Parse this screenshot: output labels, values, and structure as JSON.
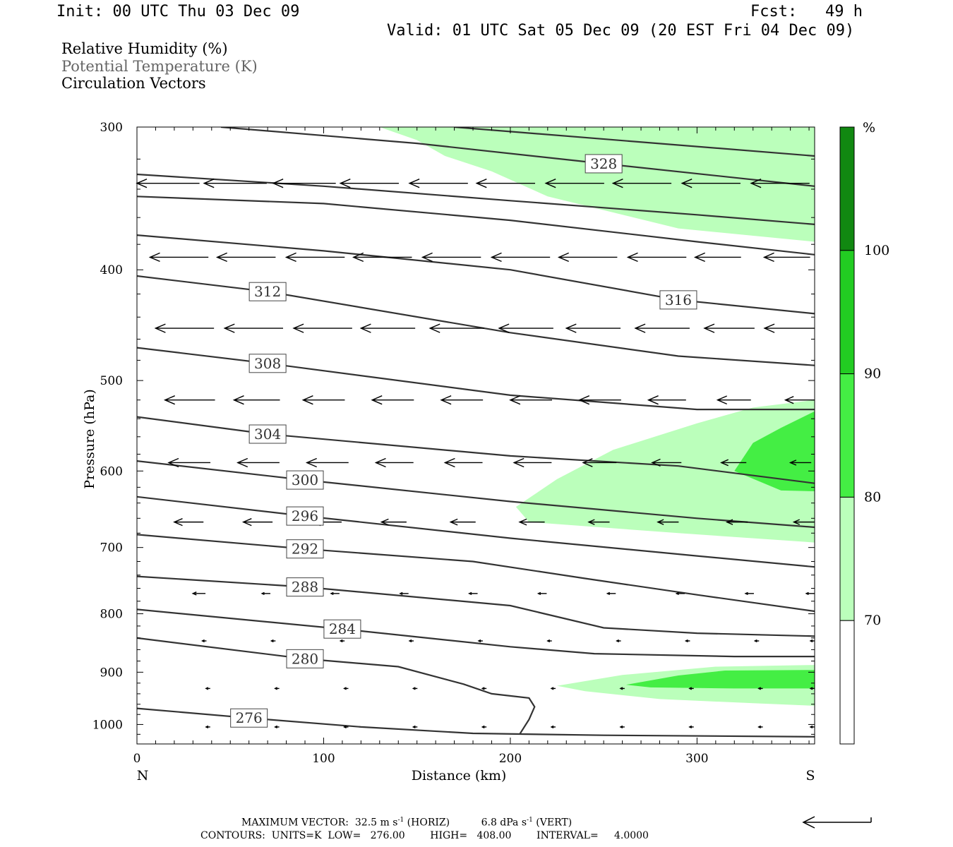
{
  "header": {
    "init": "Init: 00 UTC Thu 03 Dec 09",
    "fcst": "Fcst:   49 h",
    "valid": "Valid: 01 UTC Sat 05 Dec 09 (20 EST Fri 04 Dec 09)"
  },
  "legend": {
    "rh": "Relative Humidity (%)",
    "theta": "Potential Temperature (K)",
    "vectors": "Circulation Vectors"
  },
  "footer": {
    "max_vector_label": "MAXIMUM VECTOR:",
    "max_horiz": "32.5 m s",
    "max_horiz_exp": "-1",
    "max_horiz_unit": " (HORIZ)",
    "max_vert": "6.8 dPa s",
    "max_vert_exp": "-1",
    "max_vert_unit": " (VERT)",
    "contours": "CONTOURS:  UNITS=K  LOW=   276.00        HIGH=   408.00        INTERVAL=     4.0000"
  },
  "colorbar": {
    "unit": "%",
    "levels": [
      70,
      80,
      90,
      100
    ],
    "colors": [
      "#ffffff",
      "#bbffbb",
      "#44ee44",
      "#22cc22",
      "#118811"
    ]
  },
  "chart_data": {
    "type": "cross-section",
    "xlabel": "Distance (km)",
    "ylabel": "Pressure (hPa)",
    "xlim": [
      0,
      363
    ],
    "ylim": [
      1040,
      300
    ],
    "y_scale": "log-pressure (inverted)",
    "x_ticks": [
      0,
      100,
      200,
      300
    ],
    "y_ticks": [
      300,
      400,
      500,
      600,
      700,
      800,
      900,
      1000
    ],
    "x_end_labels": {
      "left": "N",
      "right": "S"
    },
    "theta_contour_color": "#333333",
    "rh_fill": [
      {
        "level": ">70",
        "color": "#bbffbb",
        "region": "upper right",
        "points": [
          [
            130,
            300
          ],
          [
            363,
            300
          ],
          [
            363,
            378
          ],
          [
            290,
            368
          ],
          [
            220,
            345
          ],
          [
            190,
            328
          ],
          [
            165,
            318
          ],
          [
            150,
            308
          ]
        ]
      },
      {
        "level": ">70",
        "color": "#bbffbb",
        "region": "mid right",
        "points": [
          [
            363,
            520
          ],
          [
            363,
            693
          ],
          [
            290,
            680
          ],
          [
            210,
            665
          ],
          [
            203,
            645
          ],
          [
            225,
            610
          ],
          [
            255,
            575
          ],
          [
            300,
            545
          ],
          [
            330,
            528
          ]
        ]
      },
      {
        "level": ">80",
        "color": "#44ee44",
        "region": "mid right",
        "points": [
          [
            363,
            532
          ],
          [
            363,
            625
          ],
          [
            345,
            624
          ],
          [
            320,
            600
          ],
          [
            330,
            567
          ],
          [
            345,
            550
          ]
        ]
      },
      {
        "level": ">70",
        "color": "#bbffbb",
        "region": "lower right",
        "points": [
          [
            363,
            887
          ],
          [
            363,
            963
          ],
          [
            330,
            958
          ],
          [
            280,
            950
          ],
          [
            240,
            935
          ],
          [
            225,
            925
          ],
          [
            260,
            905
          ],
          [
            310,
            890
          ]
        ]
      },
      {
        "level": ">80",
        "color": "#44ee44",
        "region": "lower right",
        "points": [
          [
            363,
            896
          ],
          [
            363,
            930
          ],
          [
            320,
            930
          ],
          [
            275,
            928
          ],
          [
            262,
            923
          ],
          [
            290,
            906
          ],
          [
            315,
            897
          ]
        ]
      }
    ],
    "theta_contours": [
      {
        "value": 276,
        "label_at": [
          60,
          987
        ],
        "points": [
          [
            0,
            968
          ],
          [
            60,
            987
          ],
          [
            120,
            1005
          ],
          [
            180,
            1018
          ],
          [
            250,
            1022
          ],
          [
            363,
            1025
          ]
        ]
      },
      {
        "value": 280,
        "label_at": [
          90,
          876
        ],
        "points": [
          [
            0,
            840
          ],
          [
            90,
            876
          ],
          [
            140,
            890
          ],
          [
            175,
            922
          ],
          [
            190,
            940
          ],
          [
            210,
            948
          ],
          [
            213,
            965
          ],
          [
            210,
            990
          ],
          [
            205,
            1020
          ]
        ]
      },
      {
        "value": 284,
        "label_at": [
          110,
          825
        ],
        "points": [
          [
            0,
            793
          ],
          [
            110,
            825
          ],
          [
            200,
            855
          ],
          [
            245,
            867
          ],
          [
            320,
            872
          ],
          [
            363,
            872
          ]
        ]
      },
      {
        "value": 288,
        "label_at": [
          90,
          758
        ],
        "points": [
          [
            0,
            742
          ],
          [
            90,
            758
          ],
          [
            200,
            787
          ],
          [
            250,
            823
          ],
          [
            300,
            832
          ],
          [
            363,
            837
          ]
        ]
      },
      {
        "value": 292,
        "label_at": [
          90,
          702
        ],
        "points": [
          [
            0,
            682
          ],
          [
            90,
            702
          ],
          [
            180,
            720
          ],
          [
            240,
            745
          ],
          [
            300,
            770
          ],
          [
            363,
            796
          ]
        ]
      },
      {
        "value": 296,
        "label_at": [
          90,
          657
        ],
        "points": [
          [
            0,
            632
          ],
          [
            90,
            657
          ],
          [
            200,
            687
          ],
          [
            300,
            712
          ],
          [
            363,
            728
          ]
        ]
      },
      {
        "value": 300,
        "label_at": [
          90,
          611
        ],
        "points": [
          [
            0,
            588
          ],
          [
            90,
            611
          ],
          [
            200,
            638
          ],
          [
            300,
            660
          ],
          [
            363,
            672
          ]
        ]
      },
      {
        "value": 304,
        "label_at": [
          70,
          557
        ],
        "points": [
          [
            0,
            538
          ],
          [
            70,
            557
          ],
          [
            200,
            582
          ],
          [
            290,
            594
          ],
          [
            363,
            615
          ]
        ]
      },
      {
        "value": 308,
        "label_at": [
          70,
          483
        ],
        "points": [
          [
            0,
            468
          ],
          [
            70,
            483
          ],
          [
            200,
            515
          ],
          [
            300,
            530
          ],
          [
            363,
            530
          ]
        ]
      },
      {
        "value": 312,
        "label_at": [
          70,
          418
        ],
        "points": [
          [
            0,
            405
          ],
          [
            70,
            418
          ],
          [
            200,
            454
          ],
          [
            290,
            476
          ],
          [
            363,
            485
          ]
        ]
      },
      {
        "value": 316,
        "label_at": [
          290,
          425
        ],
        "points": [
          [
            0,
            373
          ],
          [
            100,
            385
          ],
          [
            200,
            400
          ],
          [
            290,
            425
          ],
          [
            363,
            437
          ]
        ]
      },
      {
        "value": 320,
        "points": [
          [
            0,
            345
          ],
          [
            100,
            350
          ],
          [
            200,
            362
          ],
          [
            300,
            378
          ],
          [
            363,
            388
          ]
        ]
      },
      {
        "value": 324,
        "points": [
          [
            0,
            330
          ],
          [
            100,
            338
          ],
          [
            200,
            348
          ],
          [
            300,
            358
          ],
          [
            363,
            365
          ]
        ]
      },
      {
        "value": 328,
        "label_at": [
          250,
          323
        ],
        "points": [
          [
            45,
            300
          ],
          [
            150,
            310
          ],
          [
            250,
            323
          ],
          [
            363,
            338
          ]
        ]
      },
      {
        "value": 332,
        "points": [
          [
            170,
            300
          ],
          [
            363,
            318
          ]
        ]
      }
    ],
    "vectors_note": "horizontal circulation vectors (N-S), arrowheads point north (left)",
    "vectors": [
      {
        "p": 336,
        "x": [
          0,
          36,
          73,
          109,
          146,
          182,
          219,
          255,
          292,
          329
        ],
        "u": [
          -30,
          -30,
          -30,
          -28,
          -28,
          -28,
          -28,
          -28,
          -28,
          -28
        ]
      },
      {
        "p": 390,
        "x": [
          7,
          43,
          80,
          116,
          153,
          190,
          226,
          263,
          299,
          336
        ],
        "u": [
          -28,
          -28,
          -28,
          -28,
          -28,
          -28,
          -28,
          -28,
          -22,
          -22
        ]
      },
      {
        "p": 450,
        "x": [
          10,
          47,
          84,
          120,
          157,
          194,
          230,
          267,
          304,
          340
        ],
        "u": [
          -28,
          -28,
          -28,
          -26,
          -26,
          -26,
          -26,
          -26,
          -24,
          -24
        ]
      },
      {
        "p": 520,
        "x": [
          15,
          52,
          89,
          126,
          163,
          200,
          237,
          274,
          311,
          348
        ],
        "u": [
          -24,
          -22,
          -20,
          -20,
          -20,
          -20,
          -20,
          -18,
          -16,
          -14
        ]
      },
      {
        "p": 590,
        "x": [
          17,
          54,
          91,
          128,
          165,
          202,
          239,
          276,
          313,
          350
        ],
        "u": [
          -20,
          -20,
          -20,
          -18,
          -18,
          -18,
          -16,
          -14,
          -12,
          -10
        ]
      },
      {
        "p": 665,
        "x": [
          20,
          57,
          94,
          131,
          168,
          205,
          242,
          279,
          316,
          353
        ],
        "u": [
          -14,
          -14,
          -14,
          -12,
          -12,
          -12,
          -10,
          -10,
          -10,
          -10
        ]
      },
      {
        "p": 768,
        "x": [
          30,
          67,
          104,
          141,
          178,
          215,
          252,
          289,
          326,
          361
        ],
        "u": [
          -6,
          -4,
          -4,
          -4,
          -4,
          -4,
          -4,
          -4,
          -4,
          -4
        ]
      },
      {
        "p": 845,
        "x": [
          35,
          72,
          109,
          146,
          183,
          220,
          257,
          294,
          331,
          363
        ],
        "u": [
          -2,
          -2,
          -2,
          -2,
          -2,
          -2,
          -2,
          -2,
          -2,
          -2
        ]
      },
      {
        "p": 930,
        "x": [
          37,
          74,
          111,
          148,
          185,
          222,
          259,
          296,
          333,
          363
        ],
        "u": [
          -2,
          -2,
          -2,
          -2,
          -2,
          -2,
          -2,
          -2,
          -2,
          -2
        ]
      },
      {
        "p": 1005,
        "x": [
          37,
          74,
          111,
          148,
          185,
          222,
          259,
          296,
          333,
          363
        ],
        "u": [
          -2,
          -2,
          -2,
          -2,
          -2,
          -2,
          -2,
          -2,
          -2,
          -2
        ]
      }
    ],
    "reference_vector": {
      "u": -32.5
    }
  }
}
